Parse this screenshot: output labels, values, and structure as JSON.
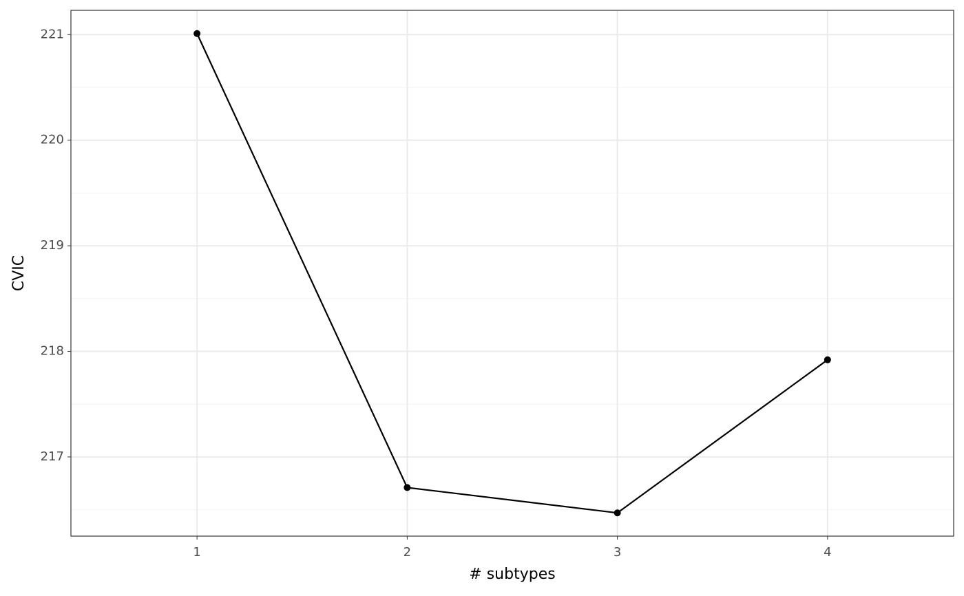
{
  "chart_data": {
    "type": "line",
    "x_label": "# subtypes",
    "y_label": "CVIC",
    "x": [
      1,
      2,
      3,
      4
    ],
    "series": [
      {
        "color": "#000000",
        "values": [
          221.01,
          216.71,
          216.47,
          217.92
        ]
      }
    ],
    "xlim": [
      0.4,
      4.6
    ],
    "xticks": [
      1,
      2,
      3,
      4
    ],
    "ylim": [
      216.25,
      221.23
    ],
    "yticks": [
      217,
      218,
      219,
      220,
      221
    ],
    "y_minor_ticks": [
      216.5,
      217.5,
      218.5,
      219.5,
      220.5
    ],
    "grid": true
  }
}
